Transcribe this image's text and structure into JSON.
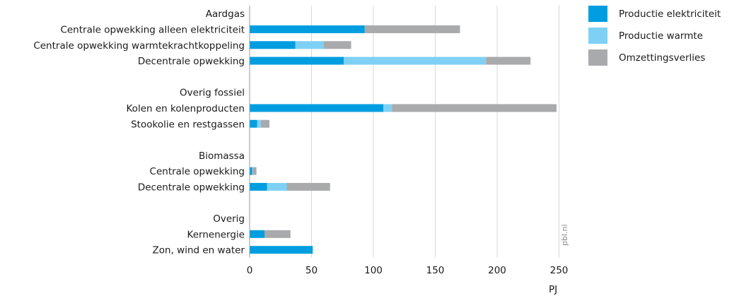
{
  "chart_data": {
    "type": "bar",
    "orientation": "horizontal",
    "stacked": true,
    "unit": "PJ",
    "watermark": "pbl.nl",
    "xlim": [
      0,
      250
    ],
    "xticks": [
      0,
      50,
      100,
      150,
      200,
      250
    ],
    "grid": true,
    "legend_position": "top-right",
    "series": [
      {
        "name": "Productie elektriciteit",
        "color": "#009ee0"
      },
      {
        "name": "Productie warmte",
        "color": "#7ed1f5"
      },
      {
        "name": "Omzettingsverlies",
        "color": "#a9aaac"
      }
    ],
    "groups": [
      {
        "title": "Aardgas",
        "rows": [
          {
            "label": "Centrale opwekking alleen elektriciteit",
            "values": [
              93,
              0,
              77
            ]
          },
          {
            "label": "Centrale opwekking warmtekrachtkoppeling",
            "values": [
              37,
              23,
              22
            ]
          },
          {
            "label": "Decentrale opwekking",
            "values": [
              76,
              115,
              36
            ]
          }
        ]
      },
      {
        "title": "Overig fossiel",
        "rows": [
          {
            "label": "Kolen en kolenproducten",
            "values": [
              108,
              7,
              133
            ]
          },
          {
            "label": "Stookolie en restgassen",
            "values": [
              6,
              3,
              7
            ]
          }
        ]
      },
      {
        "title": "Biomassa",
        "rows": [
          {
            "label": "Centrale opwekking",
            "values": [
              2,
              0.5,
              3
            ]
          },
          {
            "label": "Decentrale opwekking",
            "values": [
              14,
              16,
              35
            ]
          }
        ]
      },
      {
        "title": "Overig",
        "rows": [
          {
            "label": "Kernenergie",
            "values": [
              12,
              0,
              21
            ]
          },
          {
            "label": "Zon, wind en water",
            "values": [
              51,
              0,
              0
            ]
          }
        ]
      }
    ]
  }
}
